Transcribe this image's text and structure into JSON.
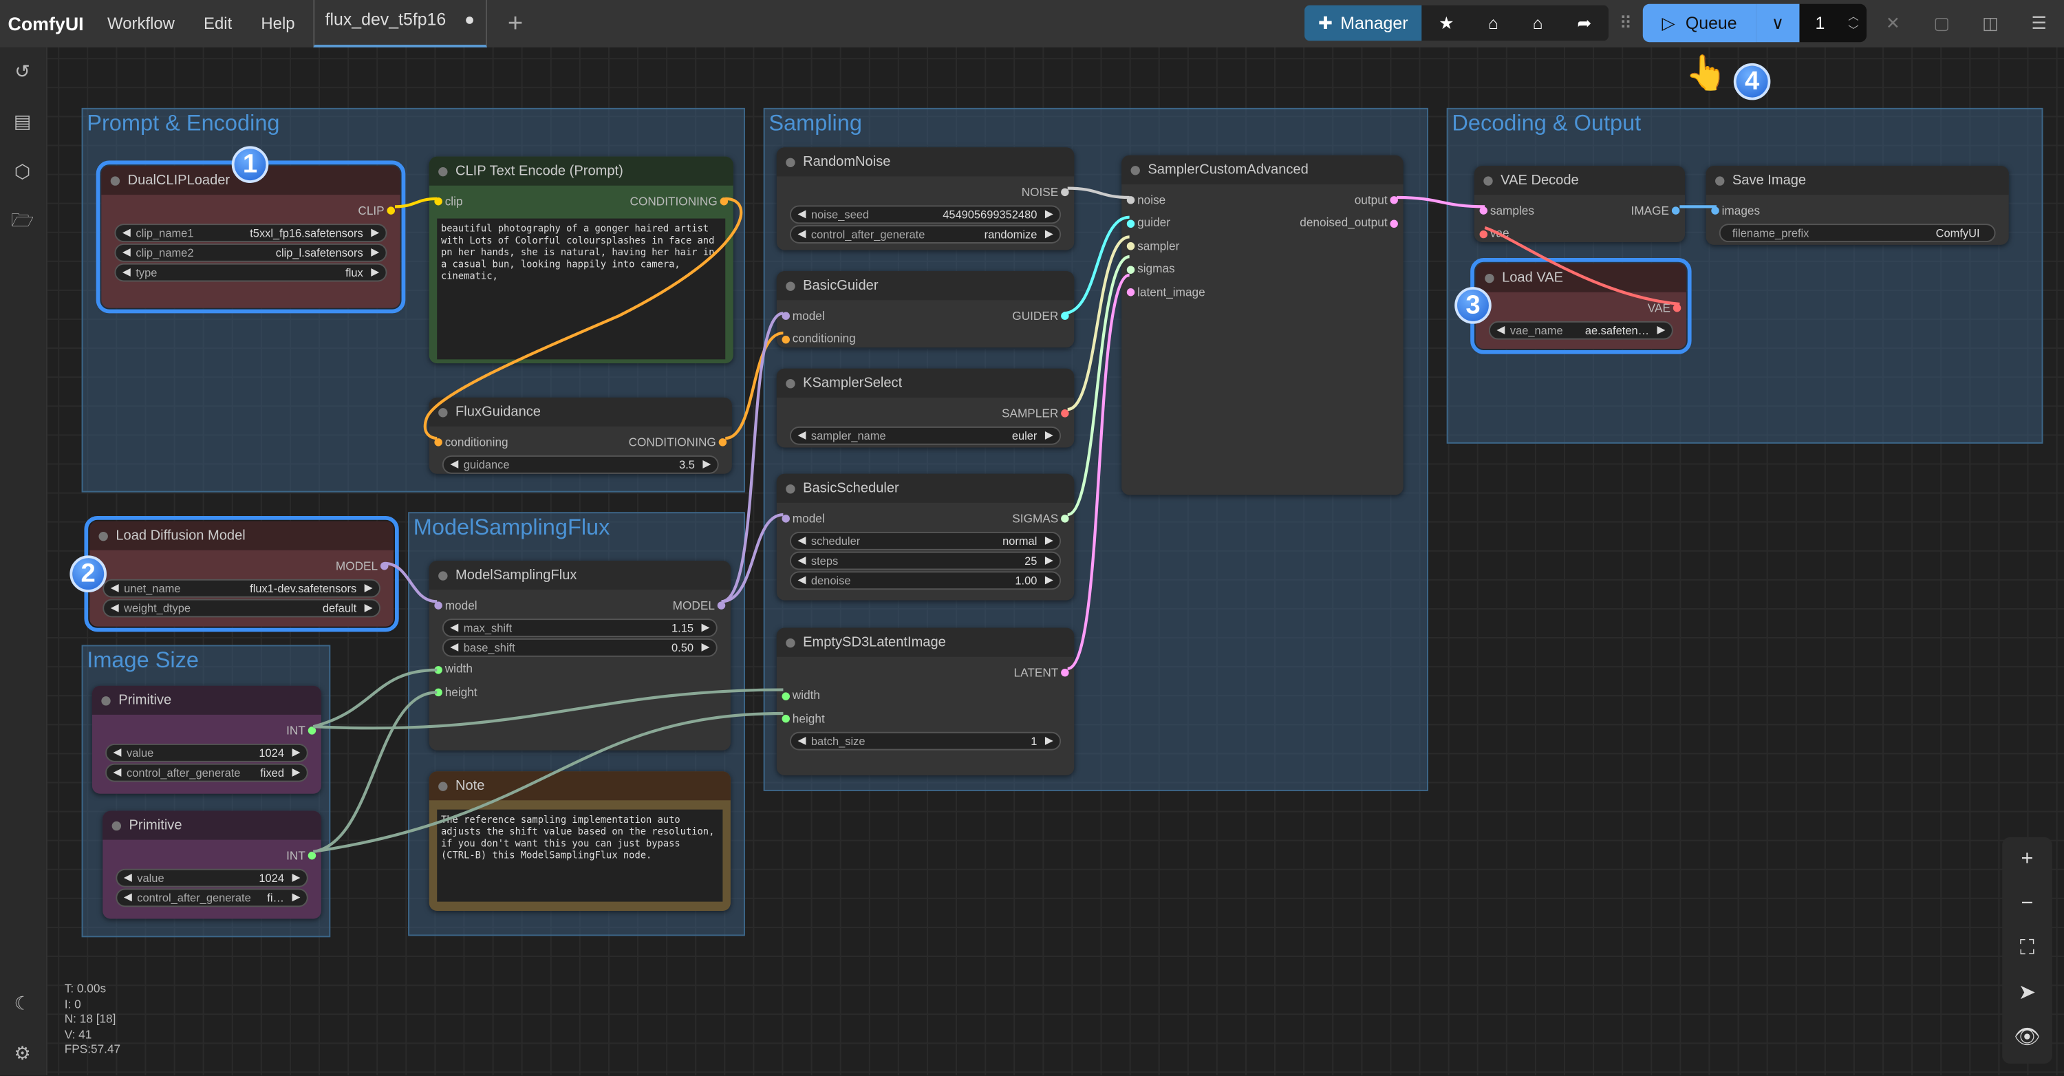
{
  "app": {
    "logo": "ComfyUI",
    "menus": [
      "Workflow",
      "Edit",
      "Help"
    ],
    "tab": "flux_dev_t5fp16",
    "tab_modified": "●",
    "new_tab": "+"
  },
  "toolbar": {
    "manager": "Manager",
    "queue": "Queue",
    "queue_count": "1",
    "icons": [
      "puzzle-icon",
      "star-icon",
      "vacuum-icon",
      "vacuum-icon",
      "share-icon"
    ]
  },
  "accent": "#5aa2f5",
  "groups": [
    {
      "id": "g1",
      "title": "Prompt & Encoding"
    },
    {
      "id": "g2",
      "title": "ModelSamplingFlux"
    },
    {
      "id": "g3",
      "title": "Image Size"
    },
    {
      "id": "g4",
      "title": "Sampling"
    },
    {
      "id": "g5",
      "title": "Decoding & Output"
    }
  ],
  "nodes": [
    {
      "id": "dualclip",
      "title": "DualCLIPLoader",
      "rows": [
        {
          "out": "CLIP",
          "oc": "#ffd500"
        },
        {
          "w": "clip_name1",
          "v": "t5xxl_fp16.safetensors"
        },
        {
          "w": "clip_name2",
          "v": "clip_l.safetensors"
        },
        {
          "w": "type",
          "v": "flux"
        }
      ]
    },
    {
      "id": "cliptext",
      "title": "CLIP Text Encode (Prompt)",
      "rows": [
        {
          "in": "clip",
          "ic": "#ffd500",
          "out": "CONDITIONING",
          "oc": "#ffa931"
        }
      ],
      "text": "beautiful photography of a gonger haired artist with Lots of Colorful coloursplashes in face and pn her hands, she is natural, having her hair in a casual bun, looking happily into camera, cinematic,"
    },
    {
      "id": "fluxguid",
      "title": "FluxGuidance",
      "rows": [
        {
          "in": "conditioning",
          "ic": "#ffa931",
          "out": "CONDITIONING",
          "oc": "#ffa931"
        },
        {
          "w": "guidance",
          "v": "3.5"
        }
      ]
    },
    {
      "id": "loaddiff",
      "title": "Load Diffusion Model",
      "rows": [
        {
          "out": "MODEL",
          "oc": "#b39ddb"
        },
        {
          "w": "unet_name",
          "v": "flux1-dev.safetensors"
        },
        {
          "w": "weight_dtype",
          "v": "default"
        }
      ]
    },
    {
      "id": "msf",
      "title": "ModelSamplingFlux",
      "rows": [
        {
          "in": "model",
          "ic": "#b39ddb",
          "out": "MODEL",
          "oc": "#b39ddb"
        },
        {
          "w": "max_shift",
          "v": "1.15"
        },
        {
          "w": "base_shift",
          "v": "0.50"
        },
        {
          "in": "width",
          "ic": "#7dff7d"
        },
        {
          "in": "height",
          "ic": "#7dff7d"
        }
      ]
    },
    {
      "id": "prim1",
      "title": "Primitive",
      "rows": [
        {
          "out": "INT",
          "oc": "#7dff7d"
        },
        {
          "w": "value",
          "v": "1024"
        },
        {
          "w": "control_after_generate",
          "v": "fixed"
        }
      ]
    },
    {
      "id": "prim2",
      "title": "Primitive",
      "rows": [
        {
          "out": "INT",
          "oc": "#7dff7d"
        },
        {
          "w": "value",
          "v": "1024"
        },
        {
          "w": "control_after_generate",
          "v": "fi…"
        }
      ]
    },
    {
      "id": "note",
      "title": "Note",
      "rows": [],
      "text": "The reference sampling implementation auto adjusts the shift value based on the resolution, if you don't want this you can just bypass (CTRL-B) this ModelSamplingFlux node."
    },
    {
      "id": "noise",
      "title": "RandomNoise",
      "rows": [
        {
          "out": "NOISE",
          "oc": "#cccccc"
        },
        {
          "w": "noise_seed",
          "v": "454905699352480"
        },
        {
          "w": "control_after_generate",
          "v": "randomize"
        }
      ]
    },
    {
      "id": "guider",
      "title": "BasicGuider",
      "rows": [
        {
          "in": "model",
          "ic": "#b39ddb",
          "out": "GUIDER",
          "oc": "#66ffff"
        },
        {
          "in": "conditioning",
          "ic": "#ffa931"
        }
      ]
    },
    {
      "id": "ksel",
      "title": "KSamplerSelect",
      "rows": [
        {
          "out": "SAMPLER",
          "oc": "#ff6e6e"
        },
        {
          "w": "sampler_name",
          "v": "euler"
        }
      ]
    },
    {
      "id": "sched",
      "title": "BasicScheduler",
      "rows": [
        {
          "in": "model",
          "ic": "#b39ddb",
          "out": "SIGMAS",
          "oc": "#cdffcd"
        },
        {
          "w": "scheduler",
          "v": "normal"
        },
        {
          "w": "steps",
          "v": "25"
        },
        {
          "w": "denoise",
          "v": "1.00"
        }
      ]
    },
    {
      "id": "latent",
      "title": "EmptySD3LatentImage",
      "rows": [
        {
          "out": "LATENT",
          "oc": "#ff9cf9"
        },
        {
          "in": "width",
          "ic": "#7dff7d"
        },
        {
          "in": "height",
          "ic": "#7dff7d"
        },
        {
          "w": "batch_size",
          "v": "1"
        }
      ]
    },
    {
      "id": "sca",
      "title": "SamplerCustomAdvanced",
      "rows": [
        {
          "in": "noise",
          "ic": "#cccccc",
          "out": "output",
          "oc": "#ff9cf9"
        },
        {
          "in": "guider",
          "ic": "#66ffff",
          "out": "denoised_output",
          "oc": "#ff9cf9"
        },
        {
          "in": "sampler",
          "ic": "#ececb6"
        },
        {
          "in": "sigmas",
          "ic": "#cdffcd"
        },
        {
          "in": "latent_image",
          "ic": "#ff9cf9"
        }
      ]
    },
    {
      "id": "vaedec",
      "title": "VAE Decode",
      "rows": [
        {
          "in": "samples",
          "ic": "#ff9cf9",
          "out": "IMAGE",
          "oc": "#64b5f6"
        },
        {
          "in": "vae",
          "ic": "#ff6e6e"
        }
      ]
    },
    {
      "id": "save",
      "title": "Save Image",
      "rows": [
        {
          "in": "images",
          "ic": "#64b5f6"
        },
        {
          "w": "filename_prefix",
          "v": "ComfyUI",
          "noarrows": true
        }
      ]
    },
    {
      "id": "loadvae",
      "title": "Load VAE",
      "rows": [
        {
          "out": "VAE",
          "oc": "#ff6e6e"
        },
        {
          "w": "vae_name",
          "v": "ae.safeten…"
        }
      ]
    }
  ],
  "badges": [
    "1",
    "2",
    "3",
    "4"
  ],
  "pointer": "👆",
  "stats": [
    "T: 0.00s",
    "I: 0",
    "N: 18 [18]",
    "V: 41",
    "FPS:57.47"
  ],
  "canvas_controls": [
    "+",
    "−",
    "⛶",
    "➤",
    "👁"
  ]
}
